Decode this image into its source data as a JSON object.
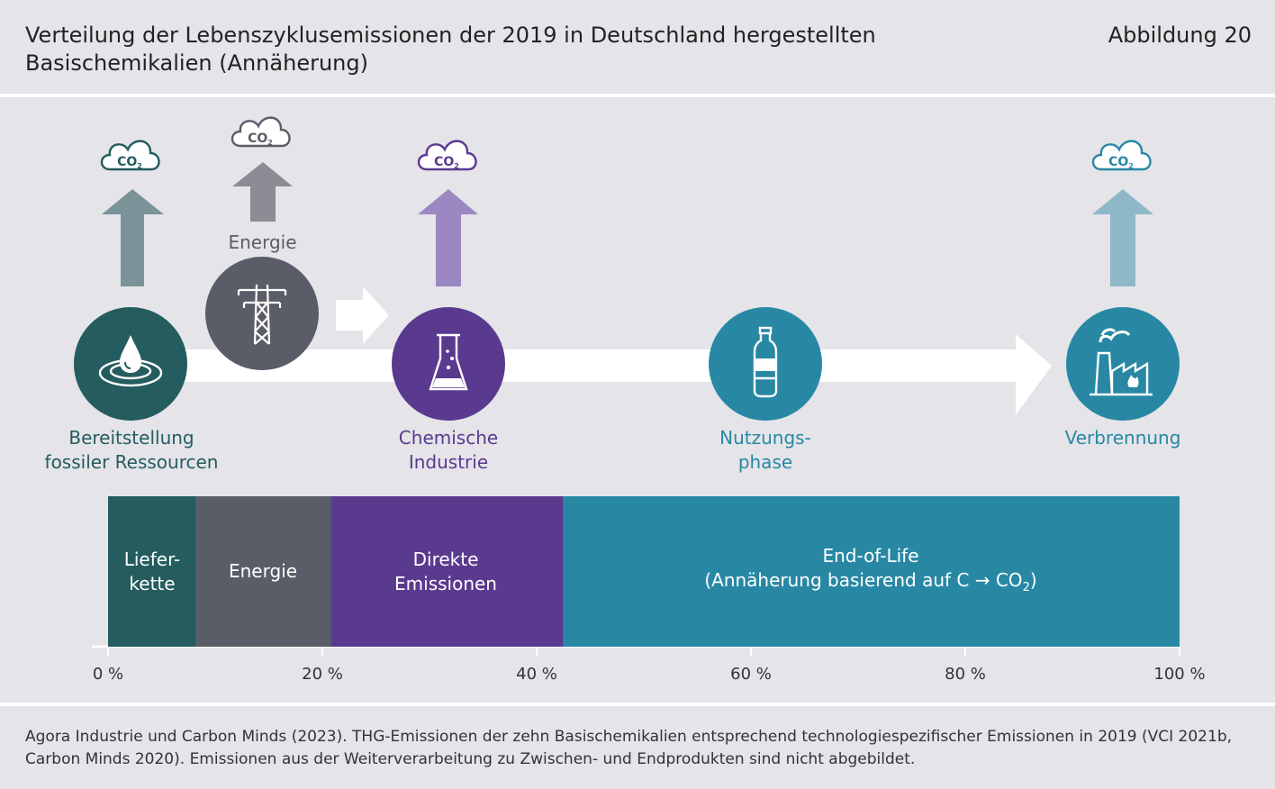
{
  "header": {
    "title_line1": "Verteilung der Lebenszyklusemissionen der 2019 in Deutschland hergestellten",
    "title_line2": "Basischemikalien (Annäherung)",
    "figure_number": "Abbildung 20"
  },
  "icons": {
    "co2_label": "CO",
    "co2_sub": "2"
  },
  "stages": {
    "fossil": {
      "line1": "Bereitstellung",
      "line2": "fossiler Ressourcen",
      "color": "#245c5f"
    },
    "energy": {
      "label": "Energie",
      "color": "#5a5d68"
    },
    "chemical": {
      "line1": "Chemische",
      "line2": "Industrie",
      "color": "#5a3a8f"
    },
    "use": {
      "line1": "Nutzungs-",
      "line2": "phase",
      "color": "#2888a4"
    },
    "incineration": {
      "label": "Verbrennung",
      "color": "#2888a4"
    }
  },
  "bar": {
    "segments": [
      {
        "line1": "Liefer-",
        "line2": "kette",
        "start": 0,
        "end": 8.2,
        "color": "#245c5f"
      },
      {
        "line1": "Energie",
        "line2": "",
        "start": 8.2,
        "end": 20.8,
        "color": "#5a5d68"
      },
      {
        "line1": "Direkte",
        "line2": "Emissionen",
        "start": 20.8,
        "end": 42.5,
        "color": "#5a3a8f"
      },
      {
        "line1": "End-of-Life",
        "line2": "(Annäherung basierend auf C → CO",
        "line2_sub": "2",
        "line2_end": ")",
        "start": 42.5,
        "end": 100,
        "color": "#2888a4"
      }
    ],
    "ticks": [
      "0 %",
      "20 %",
      "40 %",
      "60 %",
      "80 %",
      "100 %"
    ]
  },
  "source": {
    "text": "Agora Industrie und Carbon Minds (2023). THG-Emissionen der zehn Basischemikalien entsprechend technologiespezifischer Emissionen in 2019 (VCI 2021b, Carbon Minds 2020). Emissionen aus der Weiterverarbeitung zu Zwischen- und Endprodukten sind nicht abgebildet."
  }
}
